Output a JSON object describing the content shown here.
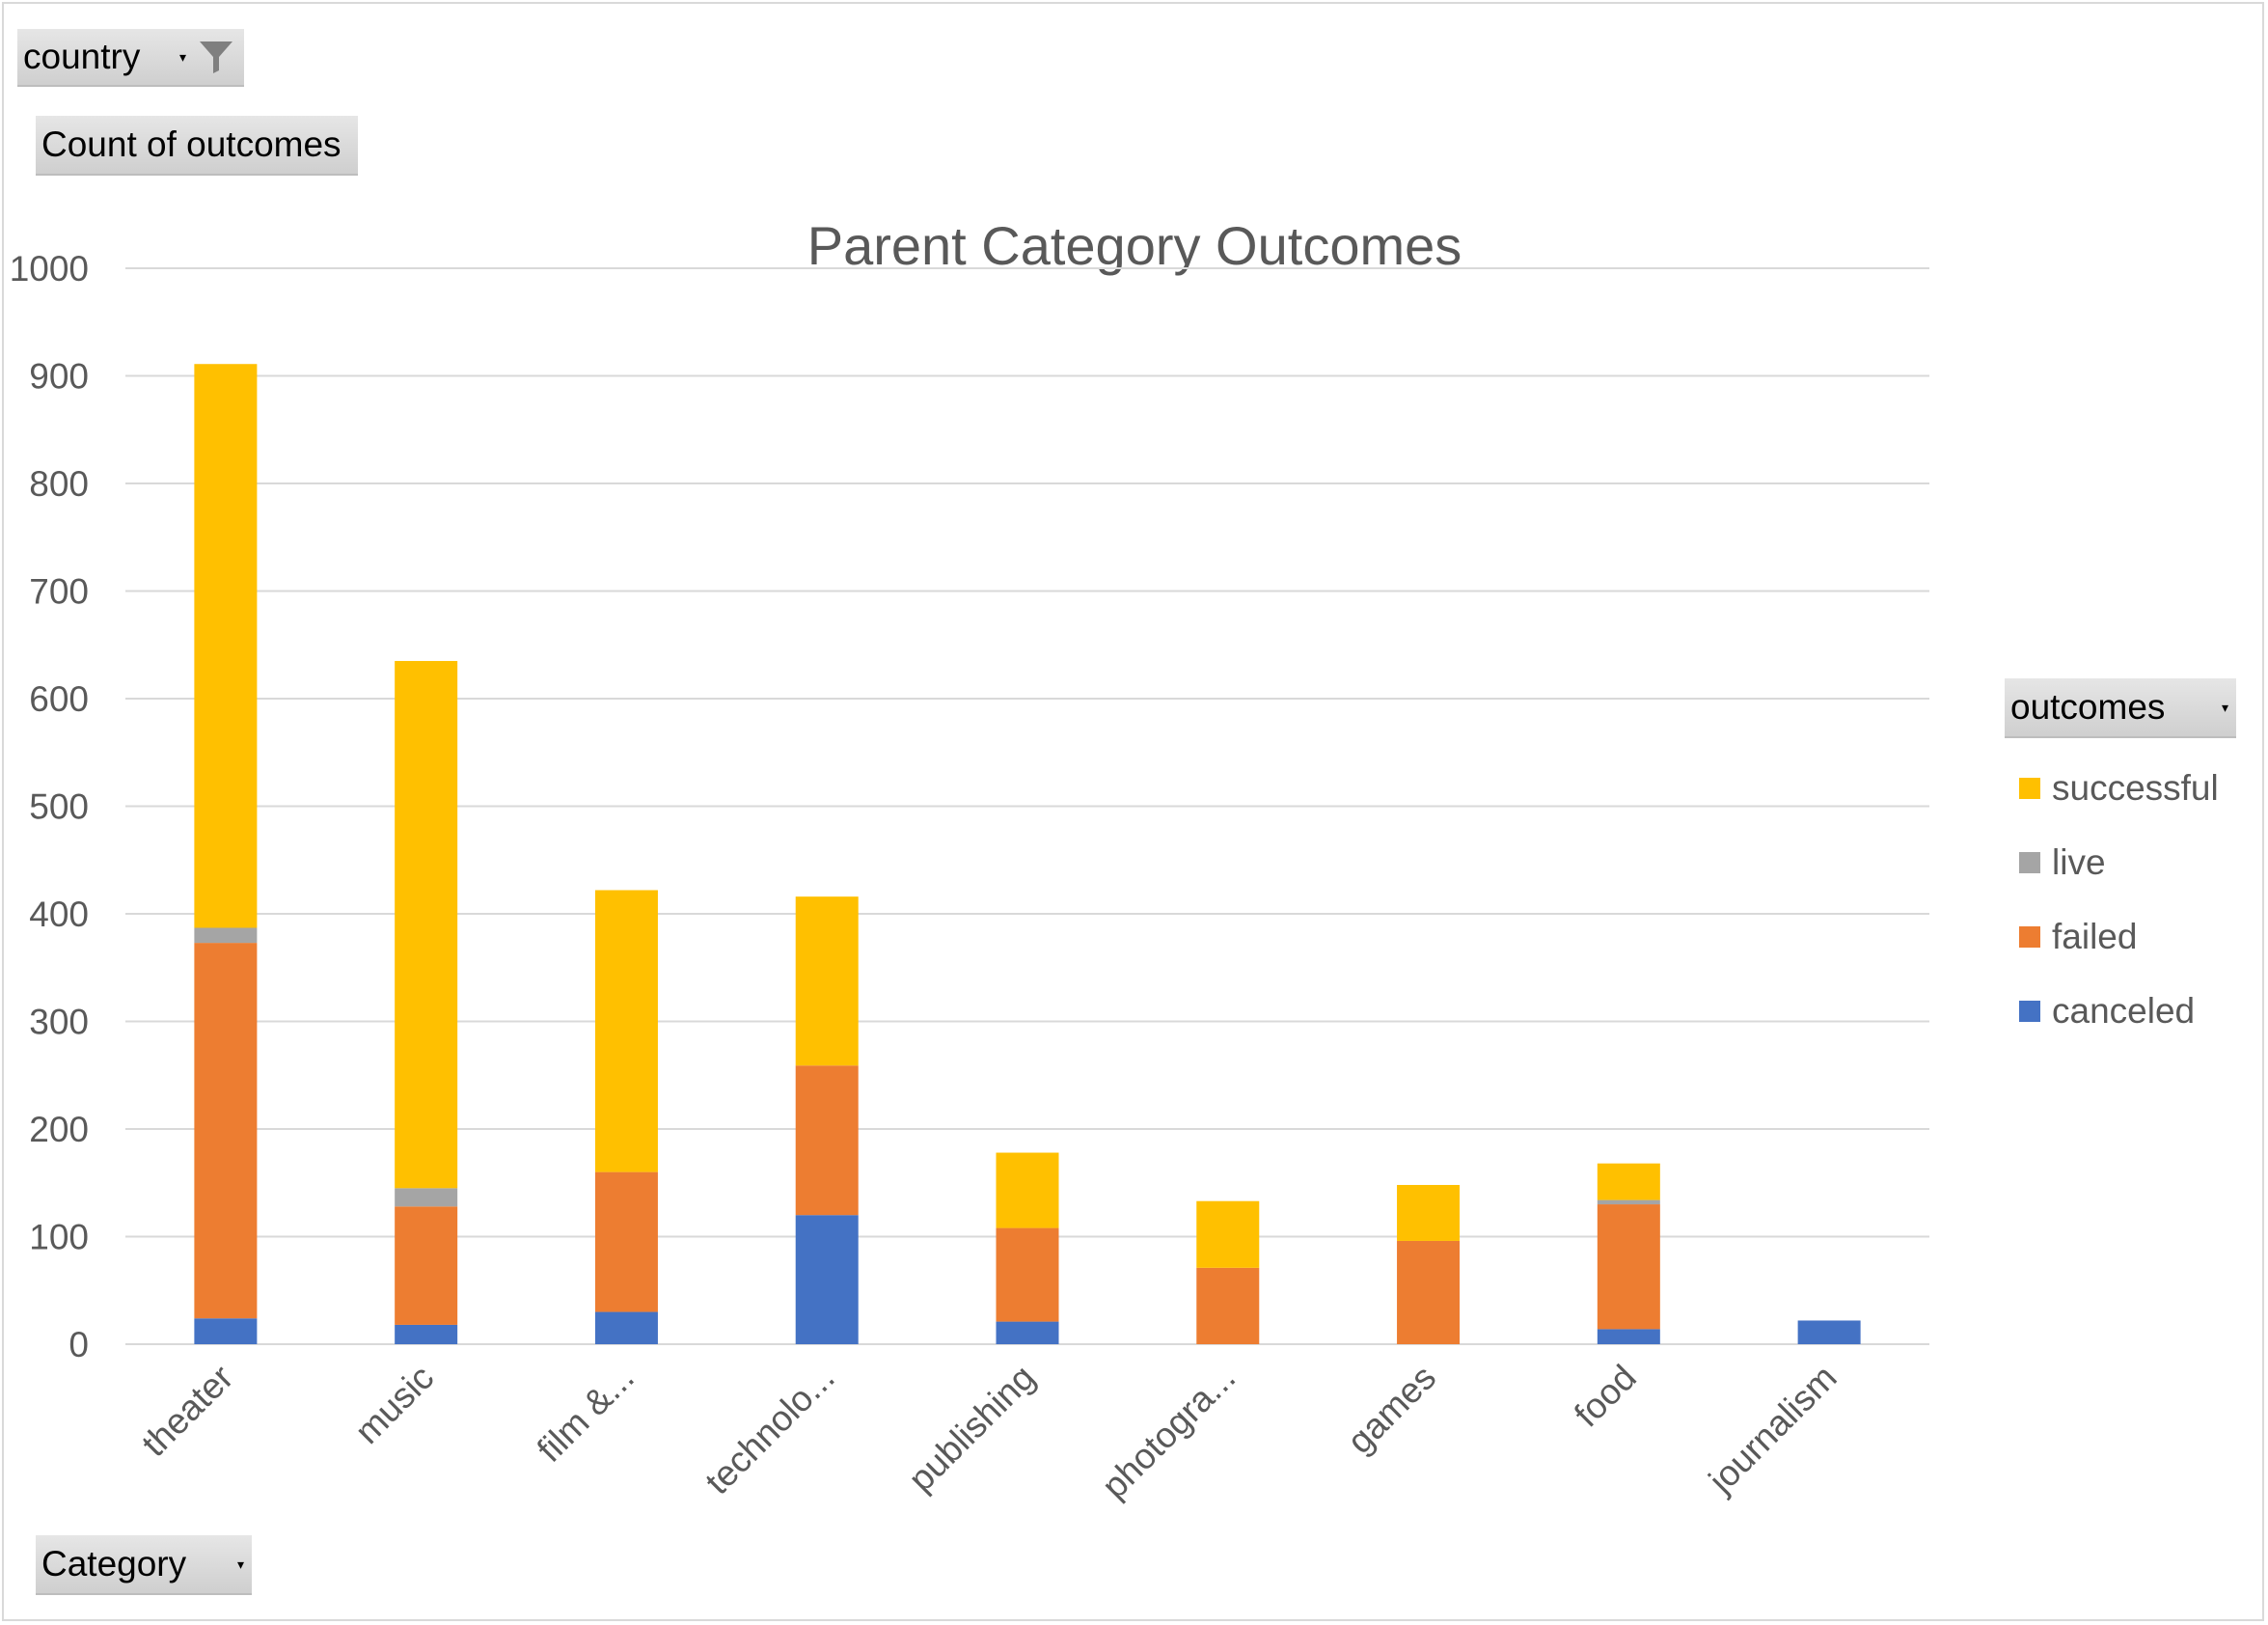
{
  "pivot_buttons": {
    "country": "country",
    "measure": "Count of outcomes",
    "category": "Category",
    "legend_field": "outcomes"
  },
  "icons": {
    "filter": "filter-icon",
    "dropdown": "chevron-down-icon"
  },
  "chart_data": {
    "type": "bar",
    "stacked": true,
    "title": "Parent Category Outcomes",
    "categories": [
      "theater",
      "music",
      "film &...",
      "technolo...",
      "publishing",
      "photogra...",
      "games",
      "food",
      "journalism"
    ],
    "series": [
      {
        "name": "canceled",
        "color": "#4472C4",
        "values": [
          24,
          18,
          30,
          120,
          21,
          0,
          0,
          14,
          22
        ]
      },
      {
        "name": "failed",
        "color": "#ED7D31",
        "values": [
          349,
          110,
          130,
          139,
          87,
          71,
          96,
          116,
          0
        ]
      },
      {
        "name": "live",
        "color": "#A5A5A5",
        "values": [
          14,
          17,
          0,
          0,
          0,
          0,
          0,
          4,
          0
        ]
      },
      {
        "name": "successful",
        "color": "#FFC000",
        "values": [
          524,
          490,
          262,
          157,
          70,
          62,
          52,
          34,
          0
        ]
      }
    ],
    "ylim": [
      0,
      1000
    ],
    "yticks": [
      "0",
      "100",
      "200",
      "300",
      "400",
      "500",
      "600",
      "700",
      "800",
      "900",
      "1000"
    ],
    "grid": true,
    "legend_position": "right",
    "legend_order": [
      "successful",
      "live",
      "failed",
      "canceled"
    ]
  }
}
